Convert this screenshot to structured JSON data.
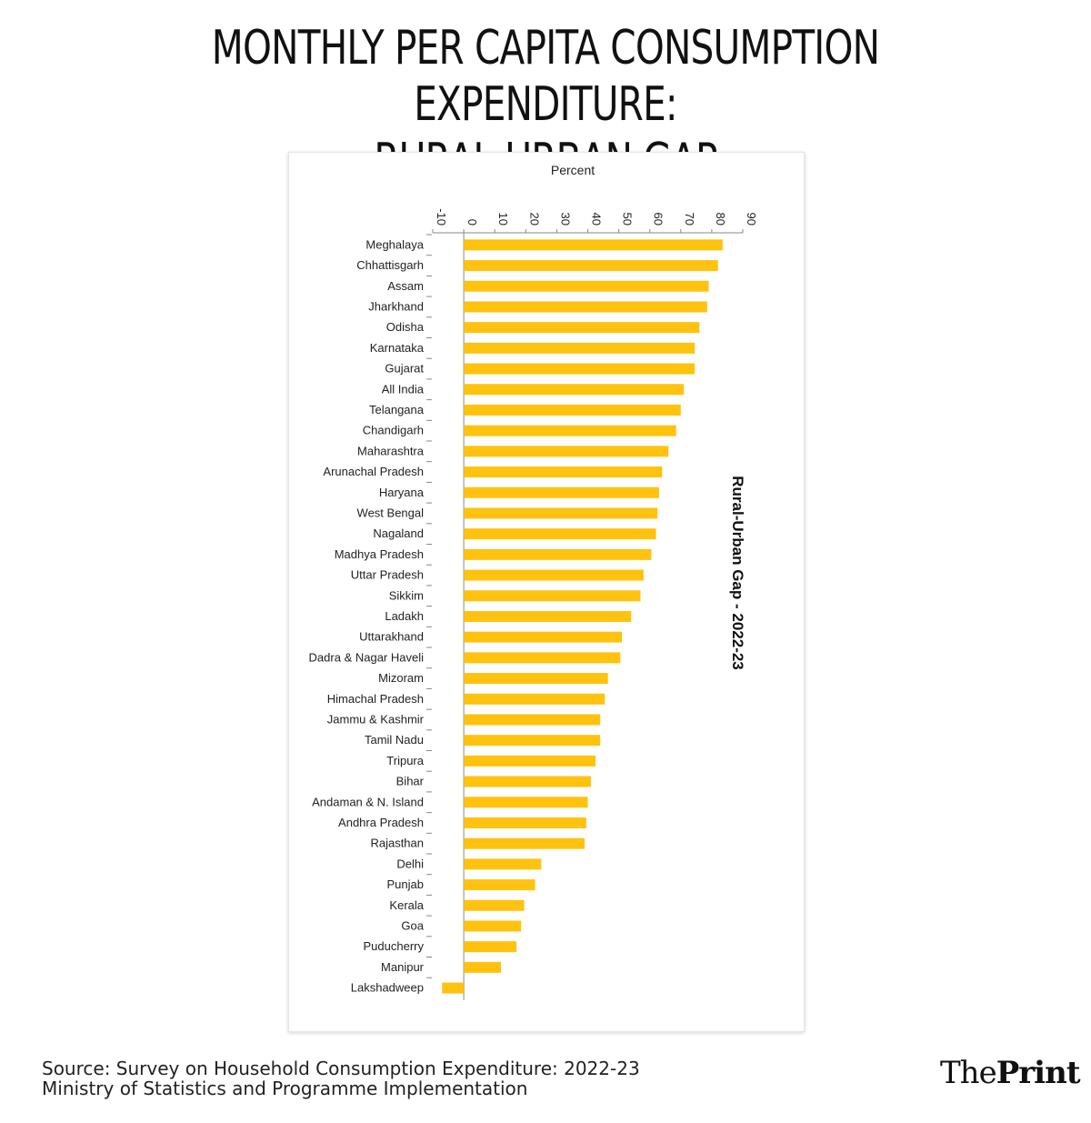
{
  "title": {
    "line1": "MONTHLY PER CAPITA CONSUMPTION EXPENDITURE:",
    "line2": "RURAL-URBAN GAP"
  },
  "chart_data": {
    "type": "bar",
    "orientation": "horizontal",
    "title": "Percent",
    "series_label": "Rural-Urban Gap - 2022-23",
    "xlim": [
      -10,
      90
    ],
    "ticks": [
      -10,
      0,
      10,
      20,
      30,
      40,
      50,
      60,
      70,
      80,
      90
    ],
    "bar_color": "#ffc20e",
    "categories": [
      "Meghalaya",
      "Chhattisgarh",
      "Assam",
      "Jharkhand",
      "Odisha",
      "Karnataka",
      "Gujarat",
      "All India",
      "Telangana",
      "Chandigarh",
      "Maharashtra",
      "Arunachal Pradesh",
      "Haryana",
      "West Bengal",
      "Nagaland",
      "Madhya Pradesh",
      "Uttar Pradesh",
      "Sikkim",
      "Ladakh",
      "Uttarakhand",
      "Dadra & Nagar Haveli",
      "Mizoram",
      "Himachal Pradesh",
      "Jammu & Kashmir",
      "Tamil Nadu",
      "Tripura",
      "Bihar",
      "Andaman & N. Island",
      "Andhra Pradesh",
      "Rajasthan",
      "Delhi",
      "Punjab",
      "Kerala",
      "Goa",
      "Puducherry",
      "Manipur",
      "Lakshadweep"
    ],
    "values": [
      83.5,
      82,
      79,
      78.5,
      76,
      74.5,
      74.5,
      71,
      70,
      68.5,
      66,
      64,
      63,
      62.5,
      62,
      60.5,
      58,
      57,
      54,
      51,
      50.5,
      46.5,
      45.5,
      44,
      44,
      42.5,
      41,
      40,
      39.5,
      39,
      25,
      23,
      19.5,
      18.5,
      17,
      12,
      -7
    ]
  },
  "footer": {
    "source_line1": "Source: Survey on Household Consumption Expenditure: 2022-23",
    "source_line2": "Ministry of Statistics and Programme Implementation",
    "logo_part1": "The",
    "logo_part2": "Print"
  }
}
